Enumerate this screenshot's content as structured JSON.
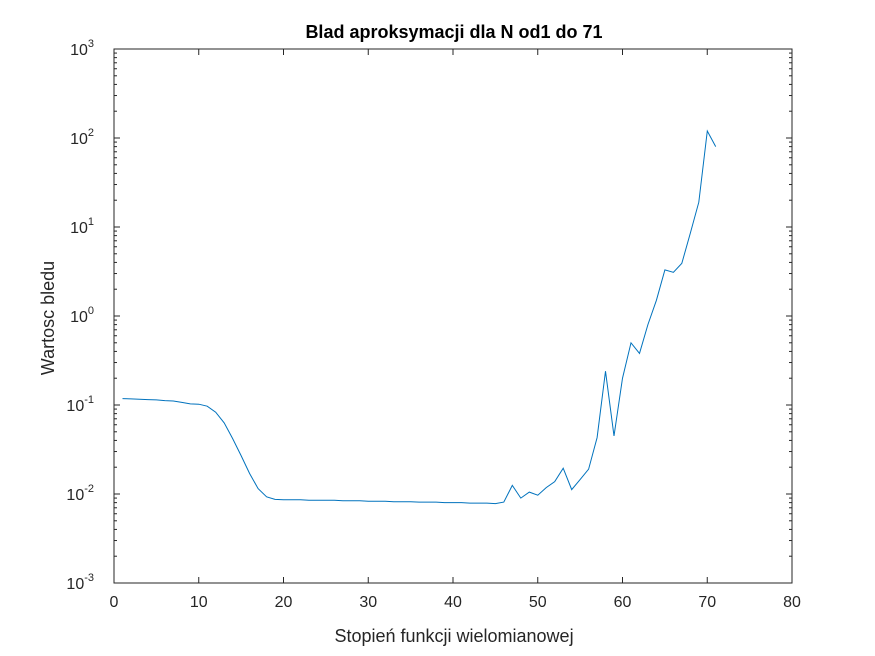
{
  "chart_data": {
    "type": "line",
    "title": "Blad aproksymacji dla N od1 do 71",
    "xlabel": "Stopień funkcji wielomianowej",
    "ylabel": "Wartosc bledu",
    "xlim": [
      0,
      80
    ],
    "ylim": [
      0.001,
      1000
    ],
    "yscale": "log",
    "grid": false,
    "line_color": "#0072BD",
    "x_ticks": [
      "0",
      "10",
      "20",
      "30",
      "40",
      "50",
      "60",
      "70",
      "80"
    ],
    "y_ticks": [
      {
        "base": "10",
        "exp": "-3",
        "value": 0.001
      },
      {
        "base": "10",
        "exp": "-2",
        "value": 0.01
      },
      {
        "base": "10",
        "exp": "-1",
        "value": 0.1
      },
      {
        "base": "10",
        "exp": "0",
        "value": 1
      },
      {
        "base": "10",
        "exp": "1",
        "value": 10
      },
      {
        "base": "10",
        "exp": "2",
        "value": 100
      },
      {
        "base": "10",
        "exp": "3",
        "value": 1000
      }
    ],
    "series": [
      {
        "x": [
          1,
          2,
          3,
          4,
          5,
          6,
          7,
          8,
          9,
          10,
          11,
          12,
          13,
          14,
          15,
          16,
          17,
          18,
          19,
          20,
          21,
          22,
          23,
          24,
          25,
          26,
          27,
          28,
          29,
          30,
          31,
          32,
          33,
          34,
          35,
          36,
          37,
          38,
          39,
          40,
          41,
          42,
          43,
          44,
          45,
          46,
          47,
          48,
          49,
          50,
          51,
          52,
          53,
          54,
          55,
          56,
          57,
          58,
          59,
          60,
          61,
          62,
          63,
          64,
          65,
          66,
          67,
          68,
          69,
          70,
          71
        ],
        "y": [
          0.118,
          0.117,
          0.116,
          0.115,
          0.114,
          0.112,
          0.111,
          0.107,
          0.103,
          0.102,
          0.097,
          0.083,
          0.063,
          0.042,
          0.027,
          0.017,
          0.0115,
          0.0093,
          0.0087,
          0.0086,
          0.0086,
          0.0086,
          0.0085,
          0.0085,
          0.0085,
          0.0085,
          0.0084,
          0.0084,
          0.0084,
          0.0083,
          0.0083,
          0.0083,
          0.0082,
          0.0082,
          0.0082,
          0.0081,
          0.0081,
          0.0081,
          0.008,
          0.008,
          0.008,
          0.0079,
          0.0079,
          0.0079,
          0.0078,
          0.0081,
          0.0125,
          0.009,
          0.0105,
          0.0097,
          0.0118,
          0.0138,
          0.0195,
          0.0112,
          0.0145,
          0.019,
          0.043,
          0.24,
          0.045,
          0.2,
          0.5,
          0.38,
          0.8,
          1.5,
          3.3,
          3.1,
          3.9,
          8.5,
          19,
          120,
          80
        ]
      }
    ]
  }
}
